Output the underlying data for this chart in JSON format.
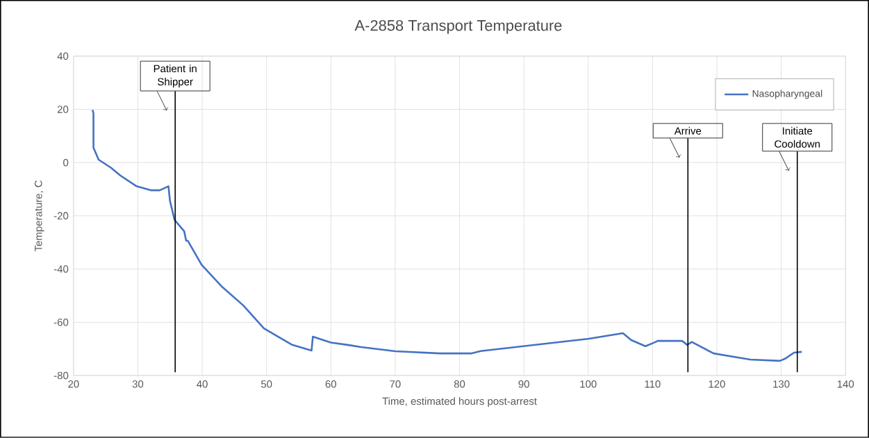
{
  "chart_data": {
    "type": "line",
    "title": "A-2858 Transport Temperature",
    "xlabel": "Time, estimated hours post-arrest",
    "ylabel": "Temperature, C",
    "xlim": [
      20,
      140
    ],
    "xticks": [
      20,
      30,
      40,
      50,
      60,
      70,
      80,
      90,
      100,
      110,
      120,
      130,
      140
    ],
    "ylim": [
      -80,
      40
    ],
    "yticks": [
      -80,
      -60,
      -40,
      -20,
      0,
      20,
      40
    ],
    "grid": true,
    "legend": "top right",
    "marker": "none",
    "line_style": "solid",
    "series": [
      {
        "name": "Nasopharyngeal",
        "color": "#4472c4",
        "x": [
          22.95,
          23.1,
          23.1,
          23.9,
          25.8,
          27.3,
          29.8,
          32.0,
          33.4,
          34.75,
          35.0,
          35.7,
          37.2,
          37.5,
          37.8,
          39.9,
          43.1,
          46.4,
          49.6,
          53.9,
          57.0,
          57.2,
          60.0,
          62.6,
          64.7,
          70.0,
          77.0,
          81.8,
          83.3,
          100.1,
          105.4,
          106.7,
          108.9,
          110.3,
          110.8,
          114.6,
          115.4,
          116.1,
          119.5,
          125.2,
          129.8,
          130.6,
          132.0,
          133.2
        ],
        "values": [
          19.8,
          18.5,
          5.6,
          1.1,
          -1.9,
          -4.9,
          -8.9,
          -10.4,
          -10.4,
          -8.9,
          -14.5,
          -21.5,
          -25.8,
          -29.3,
          -29.5,
          -38.4,
          -46.7,
          -53.7,
          -62.3,
          -68.4,
          -70.6,
          -65.4,
          -67.6,
          -68.5,
          -69.3,
          -70.9,
          -71.7,
          -71.7,
          -70.8,
          -66.2,
          -64.1,
          -66.7,
          -69.0,
          -67.6,
          -67.0,
          -67.0,
          -68.5,
          -67.4,
          -71.7,
          -74.0,
          -74.5,
          -73.7,
          -71.4,
          -71.1
        ]
      }
    ],
    "ref_lines": [
      {
        "axis": "x",
        "value": 35.8,
        "label": "Patient in Shipper",
        "color": "#000000"
      },
      {
        "axis": "x",
        "value": 115.5,
        "label": "Arrive",
        "color": "#000000"
      },
      {
        "axis": "x",
        "value": 132.5,
        "label": "Initiate Cooldown",
        "color": "#000000"
      }
    ]
  }
}
